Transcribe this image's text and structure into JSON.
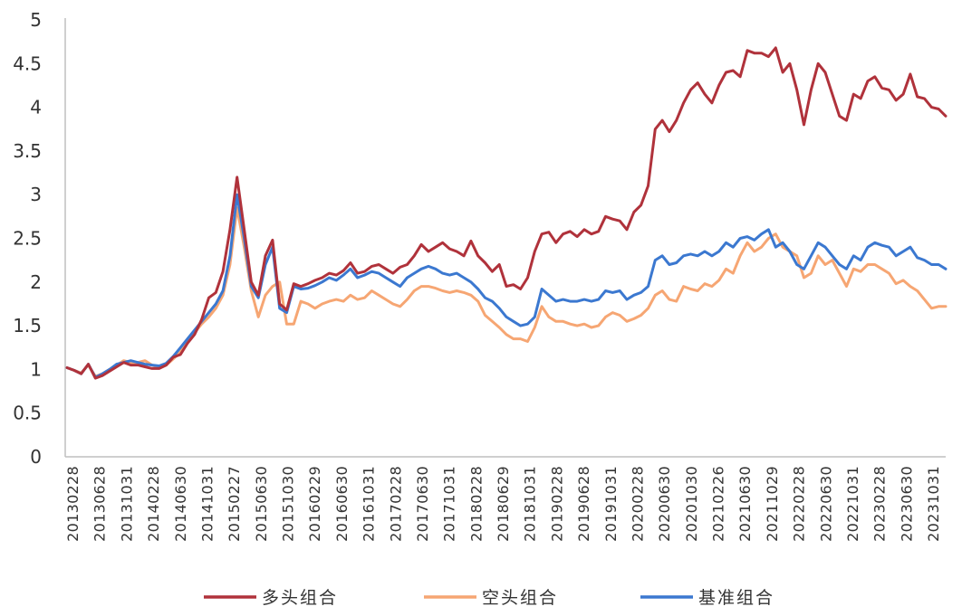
{
  "colors": {
    "long": "#b0323b",
    "short": "#f6a673",
    "bench": "#3b78d0"
  },
  "chart_data": {
    "type": "line",
    "title": "",
    "xlabel": "",
    "ylabel": "",
    "ylim": [
      0,
      5
    ],
    "y_ticks": [
      "0",
      "0.5",
      "1",
      "1.5",
      "2",
      "2.5",
      "3",
      "3.5",
      "4",
      "4.5",
      "5"
    ],
    "x_tick_labels": [
      "20130228",
      "20130628",
      "20131031",
      "20140228",
      "20140630",
      "20141031",
      "20150227",
      "20150630",
      "20151030",
      "20160229",
      "20160630",
      "20161031",
      "20170228",
      "20170630",
      "20171031",
      "20180228",
      "20180629",
      "20181031",
      "20190228",
      "20190628",
      "20191031",
      "20200228",
      "20200630",
      "20201030",
      "20210226",
      "20210630",
      "20211029",
      "20220228",
      "20220630",
      "20221031",
      "20230228",
      "20230630",
      "20231031"
    ],
    "grid": false,
    "legend_position": "bottom",
    "series": [
      {
        "name": "多头组合",
        "color_key": "long",
        "values": [
          1.02,
          0.99,
          0.95,
          1.06,
          0.9,
          0.93,
          0.98,
          1.03,
          1.08,
          1.05,
          1.05,
          1.03,
          1.01,
          1.01,
          1.05,
          1.14,
          1.17,
          1.3,
          1.4,
          1.57,
          1.82,
          1.88,
          2.12,
          2.6,
          3.2,
          2.6,
          2.0,
          1.85,
          2.3,
          2.48,
          1.75,
          1.68,
          1.98,
          1.95,
          1.98,
          2.02,
          2.05,
          2.1,
          2.08,
          2.13,
          2.22,
          2.1,
          2.12,
          2.18,
          2.2,
          2.15,
          2.1,
          2.17,
          2.2,
          2.3,
          2.43,
          2.35,
          2.4,
          2.45,
          2.38,
          2.35,
          2.3,
          2.47,
          2.3,
          2.22,
          2.12,
          2.2,
          1.95,
          1.97,
          1.92,
          2.05,
          2.35,
          2.55,
          2.57,
          2.45,
          2.55,
          2.58,
          2.52,
          2.6,
          2.55,
          2.58,
          2.75,
          2.72,
          2.7,
          2.6,
          2.8,
          2.88,
          3.1,
          3.75,
          3.85,
          3.72,
          3.85,
          4.05,
          4.2,
          4.28,
          4.15,
          4.05,
          4.25,
          4.4,
          4.42,
          4.35,
          4.65,
          4.62,
          4.62,
          4.58,
          4.68,
          4.4,
          4.5,
          4.2,
          3.8,
          4.2,
          4.5,
          4.4,
          4.15,
          3.9,
          3.85,
          4.15,
          4.1,
          4.3,
          4.35,
          4.22,
          4.2,
          4.08,
          4.15,
          4.38,
          4.12,
          4.1,
          4.0,
          3.98,
          3.9
        ]
      },
      {
        "name": "空头组合",
        "color_key": "short",
        "values": [
          1.02,
          0.99,
          0.96,
          1.05,
          0.92,
          0.95,
          1.0,
          1.05,
          1.1,
          1.08,
          1.08,
          1.1,
          1.05,
          1.02,
          1.05,
          1.12,
          1.2,
          1.32,
          1.42,
          1.52,
          1.6,
          1.7,
          1.85,
          2.2,
          2.85,
          2.4,
          1.9,
          1.6,
          1.85,
          1.95,
          2.0,
          1.52,
          1.52,
          1.78,
          1.75,
          1.7,
          1.75,
          1.78,
          1.8,
          1.78,
          1.85,
          1.8,
          1.82,
          1.9,
          1.85,
          1.8,
          1.75,
          1.72,
          1.8,
          1.9,
          1.95,
          1.95,
          1.93,
          1.9,
          1.88,
          1.9,
          1.88,
          1.85,
          1.78,
          1.62,
          1.55,
          1.48,
          1.4,
          1.35,
          1.35,
          1.32,
          1.48,
          1.72,
          1.6,
          1.55,
          1.55,
          1.52,
          1.5,
          1.52,
          1.48,
          1.5,
          1.6,
          1.65,
          1.62,
          1.55,
          1.58,
          1.62,
          1.7,
          1.85,
          1.9,
          1.8,
          1.78,
          1.95,
          1.92,
          1.9,
          1.98,
          1.95,
          2.02,
          2.15,
          2.1,
          2.3,
          2.45,
          2.35,
          2.4,
          2.5,
          2.55,
          2.4,
          2.35,
          2.3,
          2.05,
          2.1,
          2.3,
          2.2,
          2.25,
          2.1,
          1.95,
          2.15,
          2.12,
          2.2,
          2.2,
          2.15,
          2.1,
          1.98,
          2.02,
          1.95,
          1.9,
          1.8,
          1.7,
          1.72,
          1.72
        ]
      },
      {
        "name": "基准组合",
        "color_key": "bench",
        "values": [
          1.02,
          0.99,
          0.95,
          1.06,
          0.91,
          0.95,
          1.0,
          1.06,
          1.08,
          1.1,
          1.08,
          1.06,
          1.05,
          1.04,
          1.07,
          1.15,
          1.25,
          1.35,
          1.45,
          1.55,
          1.65,
          1.75,
          1.9,
          2.3,
          3.0,
          2.5,
          1.95,
          1.82,
          2.2,
          2.4,
          1.7,
          1.65,
          1.95,
          1.92,
          1.93,
          1.96,
          2.0,
          2.05,
          2.02,
          2.08,
          2.15,
          2.05,
          2.08,
          2.12,
          2.1,
          2.05,
          2.0,
          1.95,
          2.05,
          2.1,
          2.15,
          2.18,
          2.15,
          2.1,
          2.08,
          2.1,
          2.05,
          2.0,
          1.92,
          1.82,
          1.78,
          1.7,
          1.6,
          1.55,
          1.5,
          1.52,
          1.6,
          1.92,
          1.85,
          1.78,
          1.8,
          1.78,
          1.78,
          1.8,
          1.78,
          1.8,
          1.9,
          1.88,
          1.9,
          1.8,
          1.85,
          1.88,
          1.95,
          2.25,
          2.3,
          2.2,
          2.22,
          2.3,
          2.32,
          2.3,
          2.35,
          2.3,
          2.35,
          2.45,
          2.4,
          2.5,
          2.52,
          2.48,
          2.55,
          2.6,
          2.4,
          2.45,
          2.35,
          2.2,
          2.15,
          2.3,
          2.45,
          2.4,
          2.3,
          2.2,
          2.15,
          2.3,
          2.25,
          2.4,
          2.45,
          2.42,
          2.4,
          2.3,
          2.35,
          2.4,
          2.28,
          2.25,
          2.2,
          2.2,
          2.15
        ]
      }
    ]
  }
}
